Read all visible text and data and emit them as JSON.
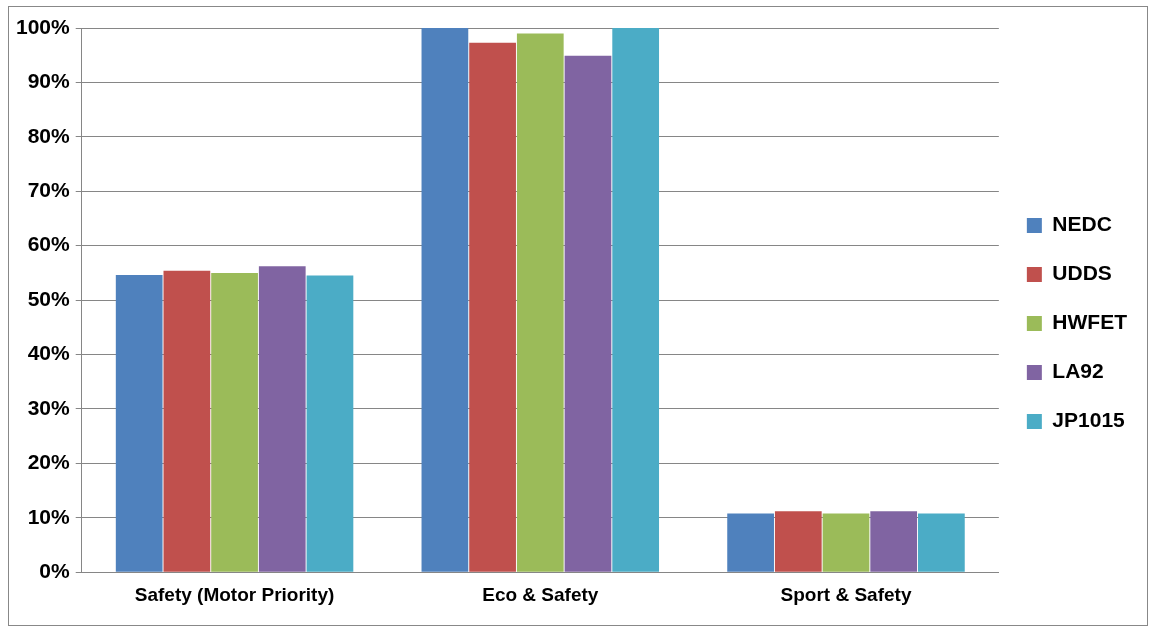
{
  "chart_data": {
    "type": "bar",
    "categories": [
      "Safety (Motor Priority)",
      "Eco & Safety",
      "Sport & Safety"
    ],
    "series": [
      {
        "name": "NEDC",
        "color": "#4f81bd",
        "values": [
          54.6,
          100,
          10.8
        ]
      },
      {
        "name": "UDDS",
        "color": "#c0504d",
        "values": [
          55.4,
          97.3,
          11.2
        ]
      },
      {
        "name": "HWFET",
        "color": "#9bbb59",
        "values": [
          55,
          99,
          10.8
        ]
      },
      {
        "name": "LA92",
        "color": "#8064a2",
        "values": [
          56.2,
          94.9,
          11.2
        ]
      },
      {
        "name": "JP1015",
        "color": "#4bacc6",
        "values": [
          54.5,
          100,
          10.8
        ]
      }
    ],
    "ylim": [
      0,
      100
    ],
    "yticks": [
      {
        "value": 0,
        "label": "0%"
      },
      {
        "value": 10,
        "label": "10%"
      },
      {
        "value": 20,
        "label": "20%"
      },
      {
        "value": 30,
        "label": "30%"
      },
      {
        "value": 40,
        "label": "40%"
      },
      {
        "value": 50,
        "label": "50%"
      },
      {
        "value": 60,
        "label": "60%"
      },
      {
        "value": 70,
        "label": "70%"
      },
      {
        "value": 80,
        "label": "80%"
      },
      {
        "value": 90,
        "label": "90%"
      },
      {
        "value": 100,
        "label": "100%"
      }
    ],
    "grid": "y",
    "legend": "right"
  }
}
